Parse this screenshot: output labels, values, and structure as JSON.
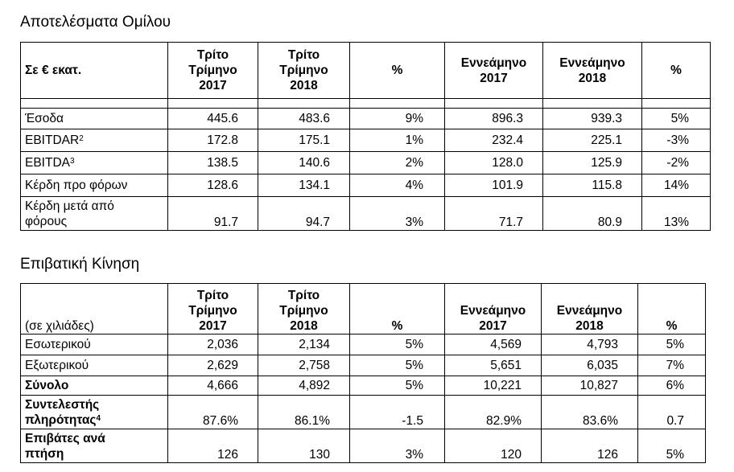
{
  "section1": {
    "title": "Αποτελέσματα Ομίλου",
    "headers": [
      "Σε € εκατ.",
      "Τρίτο Τρίμηνο 2017",
      "Τρίτο Τρίμηνο 2018",
      "%",
      "Εννεάμηνο 2017",
      "Εννεάμηνο 2018",
      "%"
    ],
    "header_lines": {
      "c1": [
        "Τρίτο",
        "Τρίμηνο",
        "2017"
      ],
      "c2": [
        "Τρίτο",
        "Τρίμηνο",
        "2018"
      ],
      "c4": [
        "Εννεάμηνο",
        "2017"
      ],
      "c5": [
        "Εννεάμηνο",
        "2018"
      ]
    },
    "rows": [
      {
        "label": "Έσοδα",
        "sup": "",
        "values": [
          "445.6",
          "483.6",
          "9%",
          "896.3",
          "939.3",
          "5%"
        ]
      },
      {
        "label": "EBITDAR",
        "sup": "2",
        "values": [
          "172.8",
          "175.1",
          "1%",
          "232.4",
          "225.1",
          "-3%"
        ]
      },
      {
        "label": "EBITDA",
        "sup": "3",
        "values": [
          "138.5",
          "140.6",
          "2%",
          "128.0",
          "125.9",
          "-2%"
        ]
      },
      {
        "label": "Κέρδη προ φόρων",
        "sup": "",
        "values": [
          "128.6",
          "134.1",
          "4%",
          "101.9",
          "115.8",
          "14%"
        ]
      },
      {
        "label": "Κέρδη μετά από φόρους",
        "label_lines": [
          "Κέρδη μετά από",
          "φόρους"
        ],
        "sup": "",
        "values": [
          "91.7",
          "94.7",
          "3%",
          "71.7",
          "80.9",
          "13%"
        ]
      }
    ]
  },
  "section2": {
    "title": "Επιβατική Κίνηση",
    "headers": [
      "(σε χιλιάδες)",
      "Τρίτο Τρίμηνο 2017",
      "Τρίτο Τρίμηνο 2018",
      "%",
      "Εννεάμηνο 2017",
      "Εννεάμηνο 2018",
      "%"
    ],
    "header_lines": {
      "c1": [
        "Τρίτο",
        "Τρίμηνο",
        "2017"
      ],
      "c2": [
        "Τρίτο",
        "Τρίμηνο",
        "2018"
      ],
      "c4": [
        "Εννεάμηνο",
        "2017"
      ],
      "c5": [
        "Εννεάμηνο",
        "2018"
      ]
    },
    "rows": [
      {
        "label": "Εσωτερικού",
        "sup": "",
        "values": [
          "2,036",
          "2,134",
          "5%",
          "4,569",
          "4,793",
          "5%"
        ]
      },
      {
        "label": "Εξωτερικού",
        "sup": "",
        "values": [
          "2,629",
          "2,758",
          "5%",
          "5,651",
          "6,035",
          "7%"
        ]
      },
      {
        "label": "Σύνολο",
        "sup": "",
        "values": [
          "4,666",
          "4,892",
          "5%",
          "10,221",
          "10,827",
          "6%"
        ]
      },
      {
        "label": "Συντελεστής πληρότητας",
        "label_lines": [
          "Συντελεστής",
          "πληρότητας"
        ],
        "sup": "4",
        "values": [
          "87.6%",
          "86.1%",
          "-1.5",
          "82.9%",
          "83.6%",
          "0.7"
        ]
      },
      {
        "label": "Επιβάτες ανά πτήση",
        "label_lines": [
          "Επιβάτες ανά",
          "πτήση"
        ],
        "sup": "",
        "values": [
          "126",
          "130",
          "3%",
          "120",
          "126",
          "5%"
        ]
      }
    ]
  }
}
